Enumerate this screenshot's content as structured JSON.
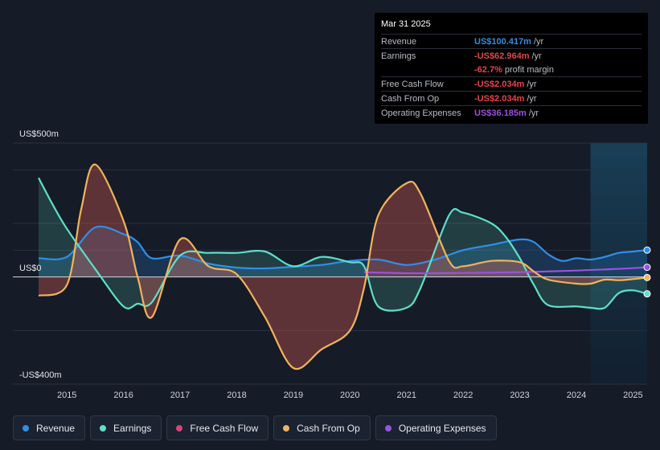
{
  "chart_data": {
    "type": "area",
    "y_label_top": "US$500m",
    "y_label_zero": "US$0",
    "y_label_bottom": "-US$400m",
    "ylim": [
      -400,
      500
    ],
    "xlim": [
      2014.5,
      2025.25
    ],
    "x_ticks": [
      "2015",
      "2016",
      "2017",
      "2018",
      "2019",
      "2020",
      "2021",
      "2022",
      "2023",
      "2024",
      "2025"
    ],
    "forecast_start": 2024.25,
    "series": [
      {
        "name": "Revenue",
        "color": "#2f8fe8",
        "points": [
          [
            2014.5,
            70
          ],
          [
            2015.0,
            75
          ],
          [
            2015.5,
            185
          ],
          [
            2016.0,
            160
          ],
          [
            2016.25,
            130
          ],
          [
            2016.5,
            70
          ],
          [
            2017.0,
            80
          ],
          [
            2017.5,
            50
          ],
          [
            2018.0,
            35
          ],
          [
            2018.5,
            32
          ],
          [
            2019.0,
            38
          ],
          [
            2019.5,
            45
          ],
          [
            2020.0,
            60
          ],
          [
            2020.5,
            65
          ],
          [
            2021.0,
            45
          ],
          [
            2021.5,
            65
          ],
          [
            2022.0,
            100
          ],
          [
            2022.5,
            120
          ],
          [
            2023.0,
            140
          ],
          [
            2023.25,
            130
          ],
          [
            2023.5,
            85
          ],
          [
            2023.75,
            60
          ],
          [
            2024.0,
            70
          ],
          [
            2024.25,
            65
          ],
          [
            2024.5,
            75
          ],
          [
            2024.75,
            90
          ],
          [
            2025.0,
            95
          ],
          [
            2025.25,
            100.417
          ]
        ]
      },
      {
        "name": "Earnings",
        "color": "#5ee0c9",
        "points": [
          [
            2014.5,
            370
          ],
          [
            2014.75,
            270
          ],
          [
            2015.0,
            180
          ],
          [
            2015.5,
            30
          ],
          [
            2016.0,
            -110
          ],
          [
            2016.25,
            -100
          ],
          [
            2016.5,
            -95
          ],
          [
            2017.0,
            80
          ],
          [
            2017.5,
            90
          ],
          [
            2018.0,
            90
          ],
          [
            2018.5,
            95
          ],
          [
            2019.0,
            40
          ],
          [
            2019.5,
            75
          ],
          [
            2020.0,
            55
          ],
          [
            2020.25,
            40
          ],
          [
            2020.5,
            -110
          ],
          [
            2021.0,
            -115
          ],
          [
            2021.25,
            -40
          ],
          [
            2021.75,
            230
          ],
          [
            2022.0,
            240
          ],
          [
            2022.5,
            200
          ],
          [
            2022.75,
            150
          ],
          [
            2023.0,
            70
          ],
          [
            2023.25,
            -30
          ],
          [
            2023.5,
            -105
          ],
          [
            2024.0,
            -110
          ],
          [
            2024.25,
            -115
          ],
          [
            2024.5,
            -115
          ],
          [
            2024.75,
            -60
          ],
          [
            2025.0,
            -50
          ],
          [
            2025.25,
            -62.964
          ]
        ]
      },
      {
        "name": "Free Cash Flow",
        "color": "#d6457a",
        "points": [
          [
            2014.5,
            -70
          ],
          [
            2015.0,
            -30
          ],
          [
            2015.25,
            250
          ],
          [
            2015.5,
            420
          ],
          [
            2016.0,
            210
          ],
          [
            2016.25,
            0
          ],
          [
            2016.5,
            -150
          ],
          [
            2017.0,
            140
          ],
          [
            2017.5,
            40
          ],
          [
            2018.0,
            10
          ],
          [
            2018.5,
            -150
          ],
          [
            2019.0,
            -340
          ],
          [
            2019.5,
            -270
          ],
          [
            2020.0,
            -200
          ],
          [
            2020.25,
            -40
          ],
          [
            2020.5,
            230
          ],
          [
            2021.0,
            350
          ],
          [
            2021.25,
            310
          ],
          [
            2021.75,
            60
          ],
          [
            2022.0,
            40
          ],
          [
            2022.5,
            60
          ],
          [
            2023.0,
            55
          ],
          [
            2023.25,
            20
          ],
          [
            2023.5,
            -10
          ],
          [
            2024.0,
            -25
          ],
          [
            2024.25,
            -25
          ],
          [
            2024.5,
            -10
          ],
          [
            2024.75,
            -12
          ],
          [
            2025.0,
            -8
          ],
          [
            2025.25,
            -2.034
          ]
        ]
      },
      {
        "name": "Cash From Op",
        "color": "#f0b45c",
        "points": [
          [
            2014.5,
            -70
          ],
          [
            2015.0,
            -30
          ],
          [
            2015.25,
            250
          ],
          [
            2015.5,
            420
          ],
          [
            2016.0,
            210
          ],
          [
            2016.25,
            0
          ],
          [
            2016.5,
            -150
          ],
          [
            2017.0,
            140
          ],
          [
            2017.5,
            40
          ],
          [
            2018.0,
            10
          ],
          [
            2018.5,
            -150
          ],
          [
            2019.0,
            -340
          ],
          [
            2019.5,
            -270
          ],
          [
            2020.0,
            -200
          ],
          [
            2020.25,
            -40
          ],
          [
            2020.5,
            230
          ],
          [
            2021.0,
            350
          ],
          [
            2021.25,
            310
          ],
          [
            2021.75,
            60
          ],
          [
            2022.0,
            40
          ],
          [
            2022.5,
            60
          ],
          [
            2023.0,
            55
          ],
          [
            2023.25,
            20
          ],
          [
            2023.5,
            -10
          ],
          [
            2024.0,
            -25
          ],
          [
            2024.25,
            -25
          ],
          [
            2024.5,
            -10
          ],
          [
            2024.75,
            -12
          ],
          [
            2025.0,
            -8
          ],
          [
            2025.25,
            -2.034
          ]
        ]
      },
      {
        "name": "Operating Expenses",
        "color": "#9b51e0",
        "points": [
          [
            2020.25,
            18
          ],
          [
            2021.0,
            14
          ],
          [
            2022.0,
            15
          ],
          [
            2023.0,
            18
          ],
          [
            2024.0,
            24
          ],
          [
            2024.5,
            28
          ],
          [
            2025.0,
            33
          ],
          [
            2025.25,
            36.185
          ]
        ]
      }
    ]
  },
  "tooltip": {
    "date": "Mar 31 2025",
    "rows": [
      {
        "label": "Revenue",
        "value": "US$100.417m",
        "unit": "/yr",
        "color": "#2f8fe8"
      },
      {
        "label": "Earnings",
        "value": "-US$62.964m",
        "unit": "/yr",
        "color": "#e8434b"
      },
      {
        "label": "",
        "value": "-62.7%",
        "unit": "profit margin",
        "color": "#e8434b"
      },
      {
        "label": "Free Cash Flow",
        "value": "-US$2.034m",
        "unit": "/yr",
        "color": "#e8434b"
      },
      {
        "label": "Cash From Op",
        "value": "-US$2.034m",
        "unit": "/yr",
        "color": "#e8434b"
      },
      {
        "label": "Operating Expenses",
        "value": "US$36.185m",
        "unit": "/yr",
        "color": "#9b51e0"
      }
    ]
  },
  "legend": [
    {
      "label": "Revenue",
      "color": "#2f8fe8"
    },
    {
      "label": "Earnings",
      "color": "#5ee0c9"
    },
    {
      "label": "Free Cash Flow",
      "color": "#d6457a"
    },
    {
      "label": "Cash From Op",
      "color": "#f0b45c"
    },
    {
      "label": "Operating Expenses",
      "color": "#9b51e0"
    }
  ]
}
